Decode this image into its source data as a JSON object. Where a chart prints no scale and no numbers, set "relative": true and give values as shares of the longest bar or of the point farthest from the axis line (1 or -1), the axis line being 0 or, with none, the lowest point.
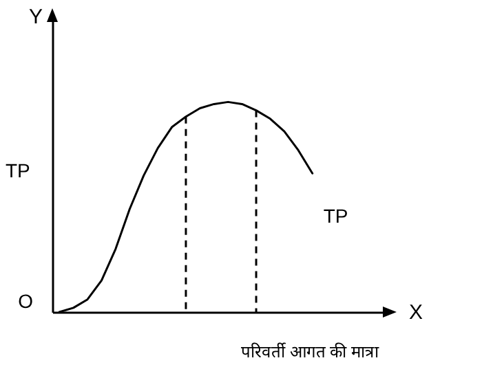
{
  "chart_data": {
    "type": "line",
    "relative": true,
    "xlabel": "X",
    "ylabel": "Y",
    "marker": "none",
    "categories": [
      null,
      null,
      null,
      null,
      null,
      null,
      null,
      null,
      null,
      null,
      null,
      null,
      null,
      null,
      null,
      null,
      null,
      null,
      null,
      null,
      null,
      null,
      null,
      null
    ],
    "series": [
      {
        "name": "TP",
        "color": "#000000",
        "values": [
          0,
          0.02,
          0.06,
          0.15,
          0.3,
          0.49,
          0.65,
          0.78,
          0.88,
          0.93,
          0.97,
          0.99,
          1,
          0.99,
          0.96,
          0.92,
          0.86,
          0.77,
          0.66,
          null,
          null,
          null,
          null,
          null
        ]
      }
    ],
    "annotations": [
      "TP",
      "O",
      "परिवर्ती आगत की मात्रा"
    ]
  }
}
